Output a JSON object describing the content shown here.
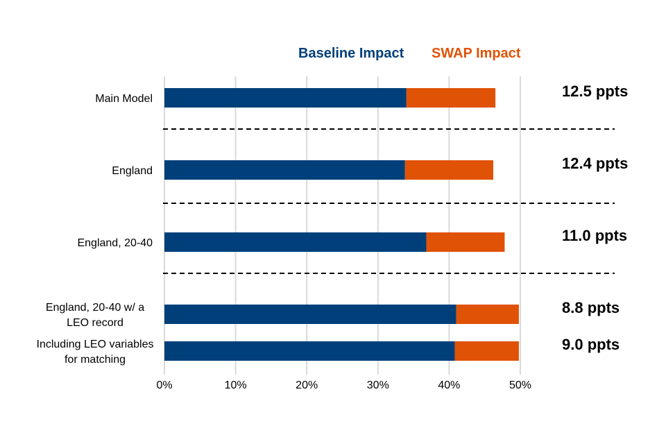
{
  "chart_data": {
    "type": "bar",
    "orientation": "horizontal",
    "stacked": true,
    "title": "",
    "xlabel": "",
    "ylabel": "",
    "xlim": [
      0,
      50
    ],
    "x_ticks": [
      "0%",
      "10%",
      "20%",
      "30%",
      "40%",
      "50%"
    ],
    "x_tick_values": [
      0,
      10,
      20,
      30,
      40,
      50
    ],
    "grid": "vertical",
    "legend_position": "top",
    "categories": [
      [
        "Main Model"
      ],
      [
        "England"
      ],
      [
        "England, 20-40"
      ],
      [
        "England, 20-40 w/ a",
        "LEO record"
      ],
      [
        "Including LEO variables",
        "for matching"
      ]
    ],
    "series": [
      {
        "name": "Baseline Impact",
        "color": "#003f7a",
        "values": [
          34.0,
          33.8,
          36.8,
          41.0,
          40.8
        ]
      },
      {
        "name": "SWAP Impact",
        "color": "#e05206",
        "values": [
          12.5,
          12.4,
          11.0,
          8.8,
          9.0
        ]
      }
    ],
    "annotations": [
      "12.5 ppts",
      "12.4 ppts",
      "11.0 ppts",
      "8.8 ppts",
      "9.0 ppts"
    ],
    "group_separators_after": [
      0,
      1,
      2
    ]
  }
}
